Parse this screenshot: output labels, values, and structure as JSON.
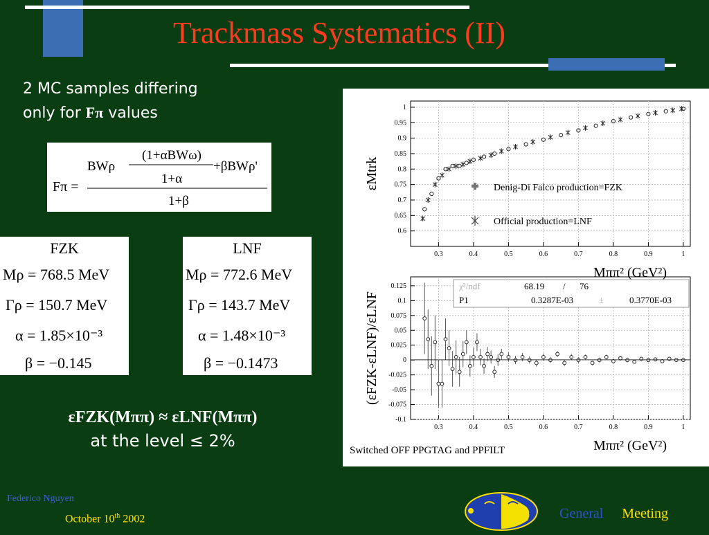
{
  "slide": {
    "title": "Trackmass Systematics (II)",
    "intro_line1": "2 MC samples differing",
    "intro_line2_prefix": "only for",
    "intro_line2_symbol": "Fπ",
    "intro_line2_suffix": "values"
  },
  "formula": {
    "lhs": "Fπ =",
    "num_top": "(1+αBWω)",
    "num_mid_left": "BWρ",
    "num_mid_right": "+βBWρ'",
    "num_den": "1+α",
    "den": "1+β"
  },
  "fzk": {
    "title": "FZK",
    "mass": "Mρ = 768.5 MeV",
    "width": "Γρ = 150.7 MeV",
    "alpha": "α = 1.85×10⁻³",
    "beta": "β = −0.145"
  },
  "lnf": {
    "title": "LNF",
    "mass": "Mρ = 772.6 MeV",
    "width": "Γρ = 143.7 MeV",
    "alpha": "α = 1.48×10⁻³",
    "beta": "β = −0.1473"
  },
  "conclusion": {
    "line1": "εFZK(Mππ) ≈ εLNF(Mππ)",
    "line2": "at the level ≤ 2%"
  },
  "footer": {
    "author": "Federico Nguyen",
    "date_prefix": "October 10",
    "date_sup": "th",
    "date_year": "2002",
    "meeting_word1": "General",
    "meeting_word2": "Meeting"
  },
  "colors": {
    "background": "#0b3d12",
    "title": "#ff3b1f",
    "accent_bar": "#3c6eb4",
    "footer_date": "#ffe000",
    "footer_author": "#3e5fd6"
  },
  "plot_caption": "Switched OFF PPGTAG and PPFILT",
  "chart_data": [
    {
      "type": "scatter",
      "title": "",
      "ylabel": "εMtrk",
      "xlabel": "Mππ² (GeV²)",
      "xlim": [
        0.22,
        1.02
      ],
      "ylim": [
        0.55,
        1.02
      ],
      "xticks": [
        0.3,
        0.4,
        0.5,
        0.6,
        0.7,
        0.8,
        0.9,
        1
      ],
      "yticks": [
        0.6,
        0.65,
        0.7,
        0.75,
        0.8,
        0.85,
        0.9,
        0.95,
        1
      ],
      "legend": [
        "Denig-Di Falco production=FZK",
        "Official production=LNF"
      ],
      "series": [
        {
          "name": "Denig-Di Falco production=FZK",
          "x": [
            0.26,
            0.28,
            0.3,
            0.32,
            0.34,
            0.36,
            0.38,
            0.4,
            0.43,
            0.46,
            0.5,
            0.55,
            0.6,
            0.65,
            0.7,
            0.75,
            0.8,
            0.85,
            0.9,
            0.95,
            1.0
          ],
          "y": [
            0.67,
            0.72,
            0.77,
            0.8,
            0.81,
            0.81,
            0.82,
            0.83,
            0.84,
            0.85,
            0.865,
            0.88,
            0.895,
            0.91,
            0.925,
            0.94,
            0.955,
            0.967,
            0.978,
            0.987,
            0.995
          ]
        },
        {
          "name": "Official production=LNF",
          "x": [
            0.255,
            0.27,
            0.29,
            0.31,
            0.33,
            0.35,
            0.37,
            0.39,
            0.42,
            0.45,
            0.48,
            0.52,
            0.57,
            0.62,
            0.67,
            0.72,
            0.77,
            0.82,
            0.87,
            0.92,
            0.97,
            0.995
          ],
          "y": [
            0.64,
            0.7,
            0.75,
            0.78,
            0.8,
            0.81,
            0.815,
            0.825,
            0.835,
            0.845,
            0.858,
            0.872,
            0.888,
            0.903,
            0.918,
            0.933,
            0.948,
            0.96,
            0.972,
            0.982,
            0.99,
            0.995
          ]
        }
      ]
    },
    {
      "type": "scatter",
      "title": "",
      "ylabel": "(εFZK-εLNF)/εLNF",
      "xlabel": "Mππ² (GeV²)",
      "xlim": [
        0.22,
        1.02
      ],
      "ylim": [
        -0.1,
        0.14
      ],
      "xticks": [
        0.3,
        0.4,
        0.5,
        0.6,
        0.7,
        0.8,
        0.9,
        1
      ],
      "yticks": [
        -0.1,
        -0.075,
        -0.05,
        -0.025,
        0,
        0.025,
        0.05,
        0.075,
        0.1,
        0.125
      ],
      "fit": {
        "chi2_label": "χ²/ndf",
        "chi2": "68.19",
        "ndf": "76",
        "par_label": "P1",
        "par_value": "0.3287E-03",
        "par_error": "0.3770E-03"
      },
      "series": [
        {
          "name": "",
          "x": [
            0.26,
            0.27,
            0.28,
            0.29,
            0.3,
            0.31,
            0.32,
            0.33,
            0.34,
            0.35,
            0.36,
            0.37,
            0.38,
            0.39,
            0.4,
            0.41,
            0.42,
            0.43,
            0.44,
            0.45,
            0.46,
            0.47,
            0.48,
            0.5,
            0.52,
            0.54,
            0.56,
            0.58,
            0.6,
            0.62,
            0.64,
            0.66,
            0.68,
            0.7,
            0.72,
            0.74,
            0.76,
            0.78,
            0.8,
            0.82,
            0.84,
            0.86,
            0.88,
            0.9,
            0.92,
            0.94,
            0.96,
            0.98,
            1.0
          ],
          "y": [
            0.07,
            0.035,
            -0.01,
            0.03,
            -0.04,
            -0.04,
            0.035,
            0.02,
            -0.015,
            0.005,
            -0.02,
            0.01,
            0.03,
            -0.01,
            0.005,
            0.03,
            0.005,
            -0.01,
            0.01,
            0.005,
            -0.02,
            0.0,
            0.01,
            0.005,
            0.0,
            0.005,
            0.0,
            -0.005,
            0.005,
            0.0,
            0.01,
            -0.005,
            0.005,
            0.0,
            0.005,
            -0.005,
            0.0,
            0.005,
            -0.002,
            0.003,
            0.0,
            -0.003,
            0.002,
            0.0,
            0.001,
            -0.002,
            0.002,
            0.0,
            0.0
          ],
          "err": [
            0.06,
            0.05,
            0.05,
            0.045,
            0.04,
            0.04,
            0.035,
            0.03,
            0.03,
            0.028,
            0.025,
            0.022,
            0.02,
            0.018,
            0.016,
            0.015,
            0.014,
            0.013,
            0.012,
            0.011,
            0.01,
            0.01,
            0.009,
            0.008,
            0.007,
            0.007,
            0.006,
            0.006,
            0.006,
            0.005,
            0.005,
            0.005,
            0.005,
            0.005,
            0.004,
            0.004,
            0.004,
            0.004,
            0.004,
            0.004,
            0.004,
            0.003,
            0.003,
            0.003,
            0.003,
            0.003,
            0.003,
            0.003,
            0.003
          ]
        }
      ]
    }
  ]
}
